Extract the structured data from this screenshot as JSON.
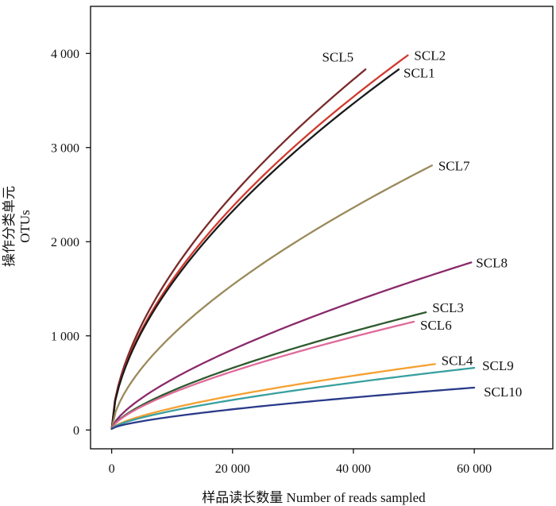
{
  "chart_data": {
    "type": "line",
    "title": "",
    "xlabel": "样品读长数量 Number of reads sampled",
    "ylabel_cn": "操作分类单元",
    "ylabel_en": "OTUs",
    "xlim": [
      -3500,
      73000
    ],
    "ylim": [
      -200,
      4500
    ],
    "x_ticks": [
      0,
      20000,
      40000,
      60000
    ],
    "x_tick_labels": [
      "0",
      "20 000",
      "40 000",
      "60 000"
    ],
    "y_ticks": [
      0,
      1000,
      2000,
      3000,
      4000
    ],
    "y_tick_labels": [
      "0",
      "1 000",
      "2 000",
      "3 000",
      "4 000"
    ],
    "grid": false,
    "series": [
      {
        "name": "SCL5",
        "color": "#7a2a2a",
        "max_reads": 42000,
        "final_otus": 3830
      },
      {
        "name": "SCL2",
        "color": "#d13a2e",
        "max_reads": 49000,
        "final_otus": 3980
      },
      {
        "name": "SCL1",
        "color": "#1a1a1a",
        "max_reads": 47500,
        "final_otus": 3830
      },
      {
        "name": "SCL7",
        "color": "#9a8a5a",
        "max_reads": 53000,
        "final_otus": 2810
      },
      {
        "name": "SCL8",
        "color": "#8a2a6a",
        "max_reads": 59500,
        "final_otus": 1780
      },
      {
        "name": "SCL3",
        "color": "#2e5a2e",
        "max_reads": 52000,
        "final_otus": 1250
      },
      {
        "name": "SCL6",
        "color": "#e06a9a",
        "max_reads": 50000,
        "final_otus": 1150
      },
      {
        "name": "SCL4",
        "color": "#f5a030",
        "max_reads": 53500,
        "final_otus": 700
      },
      {
        "name": "SCL9",
        "color": "#3aa0a0",
        "max_reads": 60000,
        "final_otus": 660
      },
      {
        "name": "SCL10",
        "color": "#2a3a8a",
        "max_reads": 60000,
        "final_otus": 450
      }
    ]
  }
}
